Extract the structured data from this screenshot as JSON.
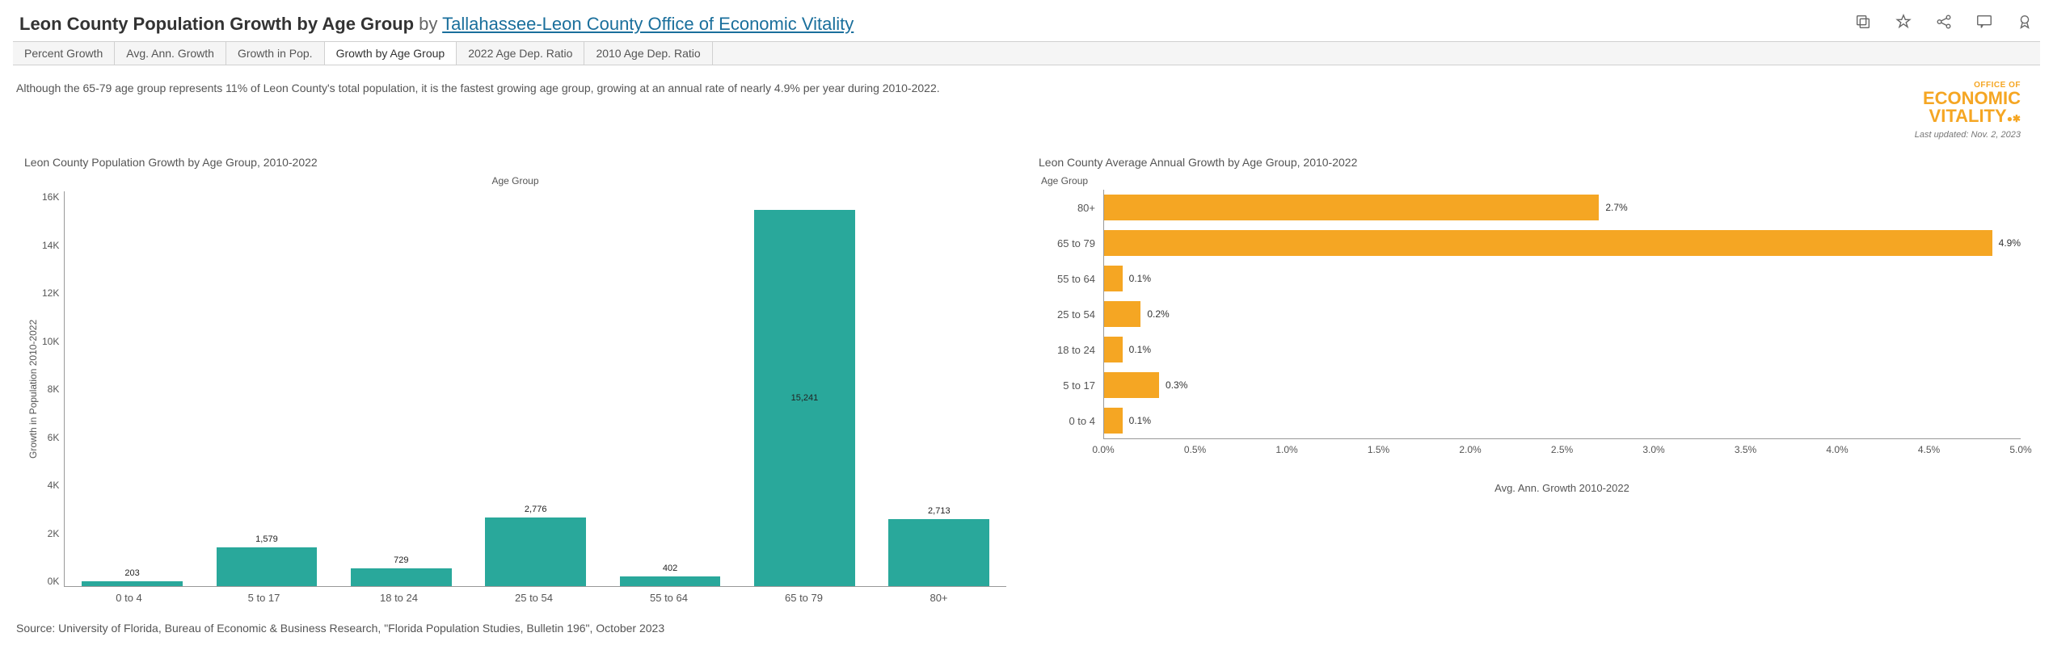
{
  "header": {
    "title_bold": "Leon County Population Growth by Age Group",
    "by_label": "by",
    "author_link": "Tallahassee-Leon County Office of Economic Vitality"
  },
  "tabs": [
    {
      "label": "Percent Growth",
      "active": false
    },
    {
      "label": "Avg. Ann. Growth",
      "active": false
    },
    {
      "label": "Growth in Pop.",
      "active": false
    },
    {
      "label": "Growth by Age Group",
      "active": true
    },
    {
      "label": "2022 Age Dep. Ratio",
      "active": false
    },
    {
      "label": "2010 Age Dep. Ratio",
      "active": false
    }
  ],
  "description": "Although the 65-79 age group represents 11% of Leon County's total population, it is the fastest growing age group, growing at an annual rate of nearly 4.9% per year during 2010-2022.",
  "logo": {
    "line1": "OFFICE OF",
    "line2": "ECONOMIC",
    "line3": "VITALITY",
    "last_updated": "Last updated: Nov. 2, 2023",
    "color": "#f5a623"
  },
  "left_chart": {
    "type": "bar",
    "title": "Leon County Population Growth by Age Group, 2010-2022",
    "axis_title_top": "Age Group",
    "y_label": "Growth in Population 2010-2022",
    "bar_color": "#29a89b",
    "y_max": 16000,
    "y_ticks": [
      "16K",
      "14K",
      "12K",
      "10K",
      "8K",
      "6K",
      "4K",
      "2K",
      "0K"
    ],
    "categories": [
      "0 to 4",
      "5 to 17",
      "18 to 24",
      "25 to 54",
      "55 to 64",
      "65 to 79",
      "80+"
    ],
    "values": [
      203,
      1579,
      729,
      2776,
      402,
      15241,
      2713
    ],
    "value_labels": [
      "203",
      "1,579",
      "729",
      "2,776",
      "402",
      "15,241",
      "2,713"
    ],
    "label_inside_threshold": 3000
  },
  "right_chart": {
    "type": "bar-horizontal",
    "title": "Leon County Average Annual Growth by Age Group, 2010-2022",
    "axis_title_left": "Age Group",
    "x_label": "Avg. Ann. Growth 2010-2022",
    "bar_color": "#f5a623",
    "x_max": 5.0,
    "x_ticks": [
      "0.0%",
      "0.5%",
      "1.0%",
      "1.5%",
      "2.0%",
      "2.5%",
      "3.0%",
      "3.5%",
      "4.0%",
      "4.5%",
      "5.0%"
    ],
    "categories": [
      "80+",
      "65 to 79",
      "55 to 64",
      "25 to 54",
      "18 to 24",
      "5 to 17",
      "0 to 4"
    ],
    "values": [
      2.7,
      4.9,
      0.1,
      0.2,
      0.1,
      0.3,
      0.1
    ],
    "value_labels": [
      "2.7%",
      "4.9%",
      "0.1%",
      "0.2%",
      "0.1%",
      "0.3%",
      "0.1%"
    ]
  },
  "source": "Source: University of Florida, Bureau of Economic & Business Research, \"Florida Population Studies, Bulletin 196\", October 2023"
}
